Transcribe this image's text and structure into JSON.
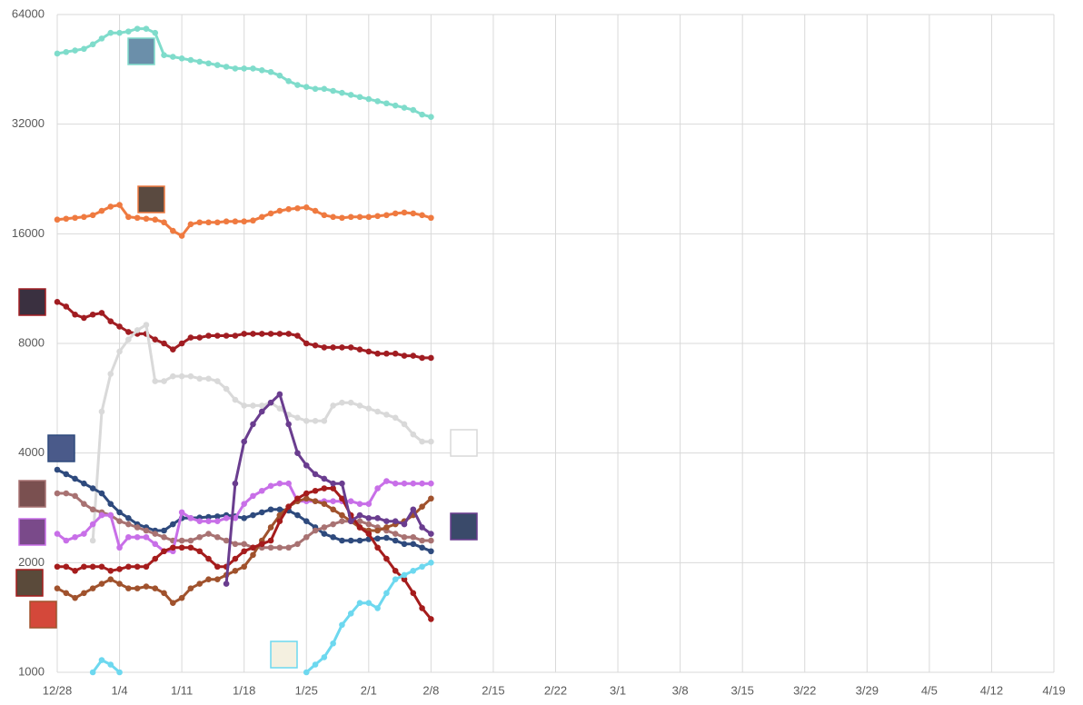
{
  "chart_data": {
    "type": "line",
    "log_scale": true,
    "grid": true,
    "x": [
      0,
      1,
      2,
      3,
      4,
      5,
      6,
      7,
      8,
      9,
      10,
      11,
      12,
      13,
      14,
      15,
      16,
      17,
      18,
      19,
      20,
      21,
      22,
      23,
      24,
      25,
      26,
      27,
      28,
      29,
      30,
      31,
      32,
      33,
      34,
      35,
      36,
      37,
      38,
      39,
      40,
      41,
      42
    ],
    "xlim": [
      0,
      112
    ],
    "xticks": [
      {
        "value": 0,
        "label": "12/28"
      },
      {
        "value": 7,
        "label": "1/4"
      },
      {
        "value": 14,
        "label": "1/11"
      },
      {
        "value": 21,
        "label": "1/18"
      },
      {
        "value": 28,
        "label": "1/25"
      },
      {
        "value": 35,
        "label": "2/1"
      },
      {
        "value": 42,
        "label": "2/8"
      },
      {
        "value": 49,
        "label": "2/15"
      },
      {
        "value": 56,
        "label": "2/22"
      },
      {
        "value": 63,
        "label": "3/1"
      },
      {
        "value": 70,
        "label": "3/8"
      },
      {
        "value": 77,
        "label": "3/15"
      },
      {
        "value": 84,
        "label": "3/22"
      },
      {
        "value": 91,
        "label": "3/29"
      },
      {
        "value": 98,
        "label": "4/5"
      },
      {
        "value": 105,
        "label": "4/12"
      },
      {
        "value": 112,
        "label": "4/19"
      }
    ],
    "ylim": [
      1000,
      64000
    ],
    "yticks": [
      1000,
      2000,
      4000,
      8000,
      16000,
      32000,
      64000
    ],
    "series": [
      {
        "color": "#7fdccb",
        "values": [
          50000,
          50500,
          51000,
          51500,
          53000,
          55000,
          57000,
          57000,
          57500,
          58500,
          58500,
          57000,
          49500,
          49000,
          48500,
          48000,
          47500,
          47000,
          46500,
          46000,
          45500,
          45500,
          45500,
          45000,
          44500,
          43500,
          42000,
          41000,
          40500,
          40000,
          40000,
          39500,
          39000,
          38500,
          38000,
          37500,
          37000,
          36500,
          36000,
          35500,
          35000,
          34000,
          33500
        ]
      },
      {
        "color": "#ef7a40",
        "values": [
          17500,
          17600,
          17700,
          17800,
          18000,
          18500,
          19000,
          19200,
          17800,
          17700,
          17600,
          17500,
          17200,
          16300,
          15800,
          17000,
          17200,
          17200,
          17200,
          17300,
          17300,
          17300,
          17400,
          17800,
          18200,
          18500,
          18700,
          18800,
          18900,
          18500,
          18000,
          17800,
          17700,
          17800,
          17800,
          17800,
          17900,
          18000,
          18200,
          18300,
          18200,
          18000,
          17700
        ]
      },
      {
        "color": "#a11d22",
        "values": [
          10400,
          10100,
          9600,
          9400,
          9600,
          9700,
          9200,
          8900,
          8600,
          8500,
          8500,
          8200,
          8000,
          7700,
          8000,
          8300,
          8300,
          8400,
          8400,
          8400,
          8400,
          8500,
          8500,
          8500,
          8500,
          8500,
          8500,
          8400,
          8000,
          7900,
          7800,
          7800,
          7800,
          7800,
          7700,
          7600,
          7500,
          7500,
          7500,
          7400,
          7400,
          7300,
          7300
        ]
      },
      {
        "color": "#d9d9d9",
        "values": [
          null,
          null,
          null,
          null,
          2300,
          5200,
          6600,
          7600,
          8200,
          8700,
          9000,
          6300,
          6300,
          6500,
          6500,
          6500,
          6400,
          6400,
          6300,
          6000,
          5600,
          5400,
          5400,
          5400,
          5500,
          5300,
          5100,
          5000,
          4900,
          4900,
          4900,
          5400,
          5500,
          5500,
          5400,
          5300,
          5200,
          5100,
          5000,
          4800,
          4500,
          4300,
          4300
        ]
      },
      {
        "color": "#2e4a7d",
        "values": [
          3600,
          3500,
          3400,
          3300,
          3200,
          3100,
          2900,
          2750,
          2650,
          2550,
          2500,
          2450,
          2450,
          2550,
          2650,
          2650,
          2660,
          2670,
          2680,
          2700,
          2680,
          2650,
          2700,
          2750,
          2800,
          2800,
          2780,
          2700,
          2600,
          2500,
          2400,
          2350,
          2300,
          2300,
          2300,
          2320,
          2330,
          2340,
          2300,
          2250,
          2250,
          2200,
          2150
        ]
      },
      {
        "color": "#a87272",
        "values": [
          3100,
          3100,
          3050,
          2900,
          2800,
          2750,
          2700,
          2600,
          2550,
          2500,
          2450,
          2400,
          2350,
          2300,
          2300,
          2300,
          2350,
          2400,
          2350,
          2300,
          2250,
          2250,
          2200,
          2200,
          2200,
          2200,
          2200,
          2250,
          2350,
          2450,
          2500,
          2550,
          2600,
          2600,
          2600,
          2550,
          2500,
          2450,
          2400,
          2350,
          2350,
          2300,
          2300
        ]
      },
      {
        "color": "#c86fe8",
        "values": [
          2400,
          2300,
          2350,
          2400,
          2550,
          2700,
          2700,
          2200,
          2350,
          2350,
          2350,
          2250,
          2150,
          2150,
          2750,
          2650,
          2600,
          2600,
          2600,
          2650,
          2650,
          2900,
          3050,
          3150,
          3250,
          3300,
          3300,
          2950,
          2950,
          2950,
          2950,
          2950,
          2950,
          2950,
          2900,
          2900,
          3200,
          3350,
          3300,
          3300,
          3300,
          3300,
          3300
        ]
      },
      {
        "color": "#a0522d",
        "values": [
          1700,
          1650,
          1600,
          1650,
          1700,
          1750,
          1800,
          1750,
          1700,
          1700,
          1720,
          1700,
          1650,
          1550,
          1600,
          1700,
          1750,
          1800,
          1800,
          1850,
          1900,
          1950,
          2100,
          2300,
          2500,
          2700,
          2850,
          2950,
          3000,
          2950,
          2900,
          2800,
          2700,
          2600,
          2500,
          2450,
          2450,
          2500,
          2550,
          2600,
          2700,
          2850,
          3000
        ]
      },
      {
        "color": "#a51c1c",
        "values": [
          1950,
          1950,
          1900,
          1950,
          1950,
          1950,
          1900,
          1920,
          1950,
          1950,
          1950,
          2050,
          2150,
          2200,
          2200,
          2200,
          2150,
          2050,
          1950,
          1950,
          2050,
          2150,
          2200,
          2250,
          2300,
          2600,
          2850,
          3000,
          3100,
          3150,
          3200,
          3200,
          3000,
          2700,
          2500,
          2400,
          2200,
          2050,
          1900,
          1800,
          1650,
          1500,
          1400
        ]
      },
      {
        "color": "#6a3d8f",
        "values": [
          null,
          null,
          null,
          null,
          null,
          null,
          null,
          null,
          null,
          null,
          null,
          null,
          null,
          null,
          null,
          null,
          null,
          null,
          null,
          1750,
          3300,
          4300,
          4800,
          5200,
          5500,
          5800,
          4800,
          4000,
          3700,
          3500,
          3400,
          3300,
          3300,
          2600,
          2700,
          2650,
          2650,
          2600,
          2600,
          2550,
          2800,
          2500,
          2400
        ]
      },
      {
        "color": "#6dd8ef",
        "values": [
          null,
          null,
          null,
          null,
          1000,
          1080,
          1050,
          1000,
          null,
          null,
          null,
          null,
          null,
          null,
          null,
          null,
          null,
          null,
          null,
          null,
          null,
          null,
          null,
          null,
          null,
          null,
          null,
          null,
          1000,
          1050,
          1100,
          1200,
          1350,
          1450,
          1550,
          1550,
          1500,
          1650,
          1800,
          1850,
          1900,
          1950,
          2000
        ]
      }
    ]
  }
}
